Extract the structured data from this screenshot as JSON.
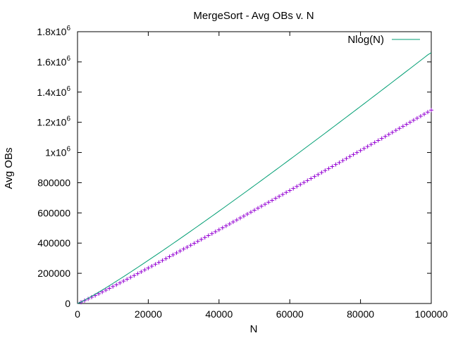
{
  "chart_data": {
    "type": "line",
    "title": "MergeSort - Avg OBs v. N",
    "xlabel": "N",
    "ylabel": "Avg OBs",
    "xlim": [
      0,
      100000
    ],
    "ylim": [
      0,
      1800000
    ],
    "x_ticks": [
      {
        "value": 0,
        "label": "0"
      },
      {
        "value": 20000,
        "label": "20000"
      },
      {
        "value": 40000,
        "label": "40000"
      },
      {
        "value": 60000,
        "label": "60000"
      },
      {
        "value": 80000,
        "label": "80000"
      },
      {
        "value": 100000,
        "label": "100000"
      }
    ],
    "y_ticks": [
      {
        "value": 0,
        "label": "0"
      },
      {
        "value": 200000,
        "label": "200000"
      },
      {
        "value": 400000,
        "label": "400000"
      },
      {
        "value": 600000,
        "label": "600000"
      },
      {
        "value": 800000,
        "label": "800000"
      },
      {
        "value": 1000000,
        "label": "1x10",
        "exp": "6"
      },
      {
        "value": 1200000,
        "label": "1.2x10",
        "exp": "6"
      },
      {
        "value": 1400000,
        "label": "1.4x10",
        "exp": "6"
      },
      {
        "value": 1600000,
        "label": "1.6x10",
        "exp": "6"
      },
      {
        "value": 1800000,
        "label": "1.8x10",
        "exp": "6"
      }
    ],
    "grid": false,
    "legend_position": "top-right",
    "series": [
      {
        "marker": "plus",
        "color": "#9400d3",
        "x": [
          1000,
          2000,
          3000,
          4000,
          5000,
          6000,
          7000,
          8000,
          9000,
          10000,
          11000,
          12000,
          13000,
          14000,
          15000,
          16000,
          17000,
          18000,
          19000,
          20000,
          21000,
          22000,
          23000,
          24000,
          25000,
          26000,
          27000,
          28000,
          29000,
          30000,
          31000,
          32000,
          33000,
          34000,
          35000,
          36000,
          37000,
          38000,
          39000,
          40000,
          41000,
          42000,
          43000,
          44000,
          45000,
          46000,
          47000,
          48000,
          49000,
          50000,
          51000,
          52000,
          53000,
          54000,
          55000,
          56000,
          57000,
          58000,
          59000,
          60000,
          61000,
          62000,
          63000,
          64000,
          65000,
          66000,
          67000,
          68000,
          69000,
          70000,
          71000,
          72000,
          73000,
          74000,
          75000,
          76000,
          77000,
          78000,
          79000,
          80000,
          81000,
          82000,
          83000,
          84000,
          85000,
          86000,
          87000,
          88000,
          89000,
          90000,
          91000,
          92000,
          93000,
          94000,
          95000,
          96000,
          97000,
          98000,
          99000,
          100000
        ],
        "y": [
          8700,
          19400,
          30500,
          41800,
          53200,
          64800,
          76600,
          88400,
          100300,
          112300,
          124300,
          136400,
          148600,
          160800,
          173000,
          185300,
          197600,
          210000,
          222400,
          234800,
          247300,
          259800,
          272300,
          284800,
          297400,
          310000,
          322600,
          335300,
          347900,
          360600,
          373300,
          386100,
          398800,
          411600,
          424400,
          437200,
          450000,
          462800,
          475700,
          488500,
          501400,
          514300,
          527200,
          540100,
          553100,
          566000,
          579000,
          592000,
          605000,
          618000,
          631000,
          644000,
          657100,
          670100,
          683200,
          696300,
          709400,
          722500,
          735600,
          748700,
          761900,
          775000,
          788200,
          801300,
          814500,
          827700,
          840900,
          854100,
          867300,
          880500,
          893700,
          907000,
          920200,
          933500,
          946700,
          960000,
          973300,
          986600,
          999900,
          1013200,
          1026500,
          1039800,
          1053100,
          1066400,
          1079800,
          1093100,
          1106500,
          1119800,
          1133200,
          1146600,
          1159900,
          1173300,
          1186700,
          1200100,
          1213500,
          1226900,
          1240300,
          1253800,
          1267200,
          1280600
        ]
      },
      {
        "name": "Nlog(N)",
        "color": "#009e73",
        "x": [
          1000,
          2000,
          3000,
          4000,
          5000,
          6000,
          7000,
          8000,
          9000,
          10000,
          11000,
          12000,
          13000,
          14000,
          15000,
          16000,
          17000,
          18000,
          19000,
          20000,
          21000,
          22000,
          23000,
          24000,
          25000,
          26000,
          27000,
          28000,
          29000,
          30000,
          31000,
          32000,
          33000,
          34000,
          35000,
          36000,
          37000,
          38000,
          39000,
          40000,
          41000,
          42000,
          43000,
          44000,
          45000,
          46000,
          47000,
          48000,
          49000,
          50000,
          51000,
          52000,
          53000,
          54000,
          55000,
          56000,
          57000,
          58000,
          59000,
          60000,
          61000,
          62000,
          63000,
          64000,
          65000,
          66000,
          67000,
          68000,
          69000,
          70000,
          71000,
          72000,
          73000,
          74000,
          75000,
          76000,
          77000,
          78000,
          79000,
          80000,
          81000,
          82000,
          83000,
          84000,
          85000,
          86000,
          87000,
          88000,
          89000,
          90000,
          91000,
          92000,
          93000,
          94000,
          95000,
          96000,
          97000,
          98000,
          99000,
          100000
        ],
        "y": [
          9966,
          21932,
          34652,
          47863,
          61439,
          75304,
          89412,
          103726,
          118221,
          132877,
          147678,
          162609,
          177661,
          192823,
          208088,
          223451,
          238904,
          254442,
          270063,
          285754,
          301522,
          317356,
          333254,
          349218,
          365241,
          381323,
          397461,
          413654,
          429902,
          446200,
          462549,
          478946,
          495389,
          511878,
          528412,
          544988,
          561604,
          578261,
          594958,
          611695,
          628464,
          645271,
          662113,
          678990,
          695901,
          712846,
          729823,
          746836,
          763878,
          780951,
          798057,
          815187,
          832350,
          849540,
          866756,
          884004,
          901276,
          918574,
          935902,
          953254,
          970628,
          988030,
          1005454,
          1022905,
          1040376,
          1057874,
          1075393,
          1092933,
          1110500,
          1128086,
          1145693,
          1163323,
          1180974,
          1198644,
          1216335,
          1234045,
          1251778,
          1269529,
          1287296,
          1305088,
          1322893,
          1340717,
          1358562,
          1376422,
          1394302,
          1412193,
          1430107,
          1448035,
          1465982,
          1483943,
          1501917,
          1519909,
          1537919,
          1555942,
          1573977,
          1592034,
          1610098,
          1628178,
          1646275,
          1660964
        ]
      }
    ]
  }
}
